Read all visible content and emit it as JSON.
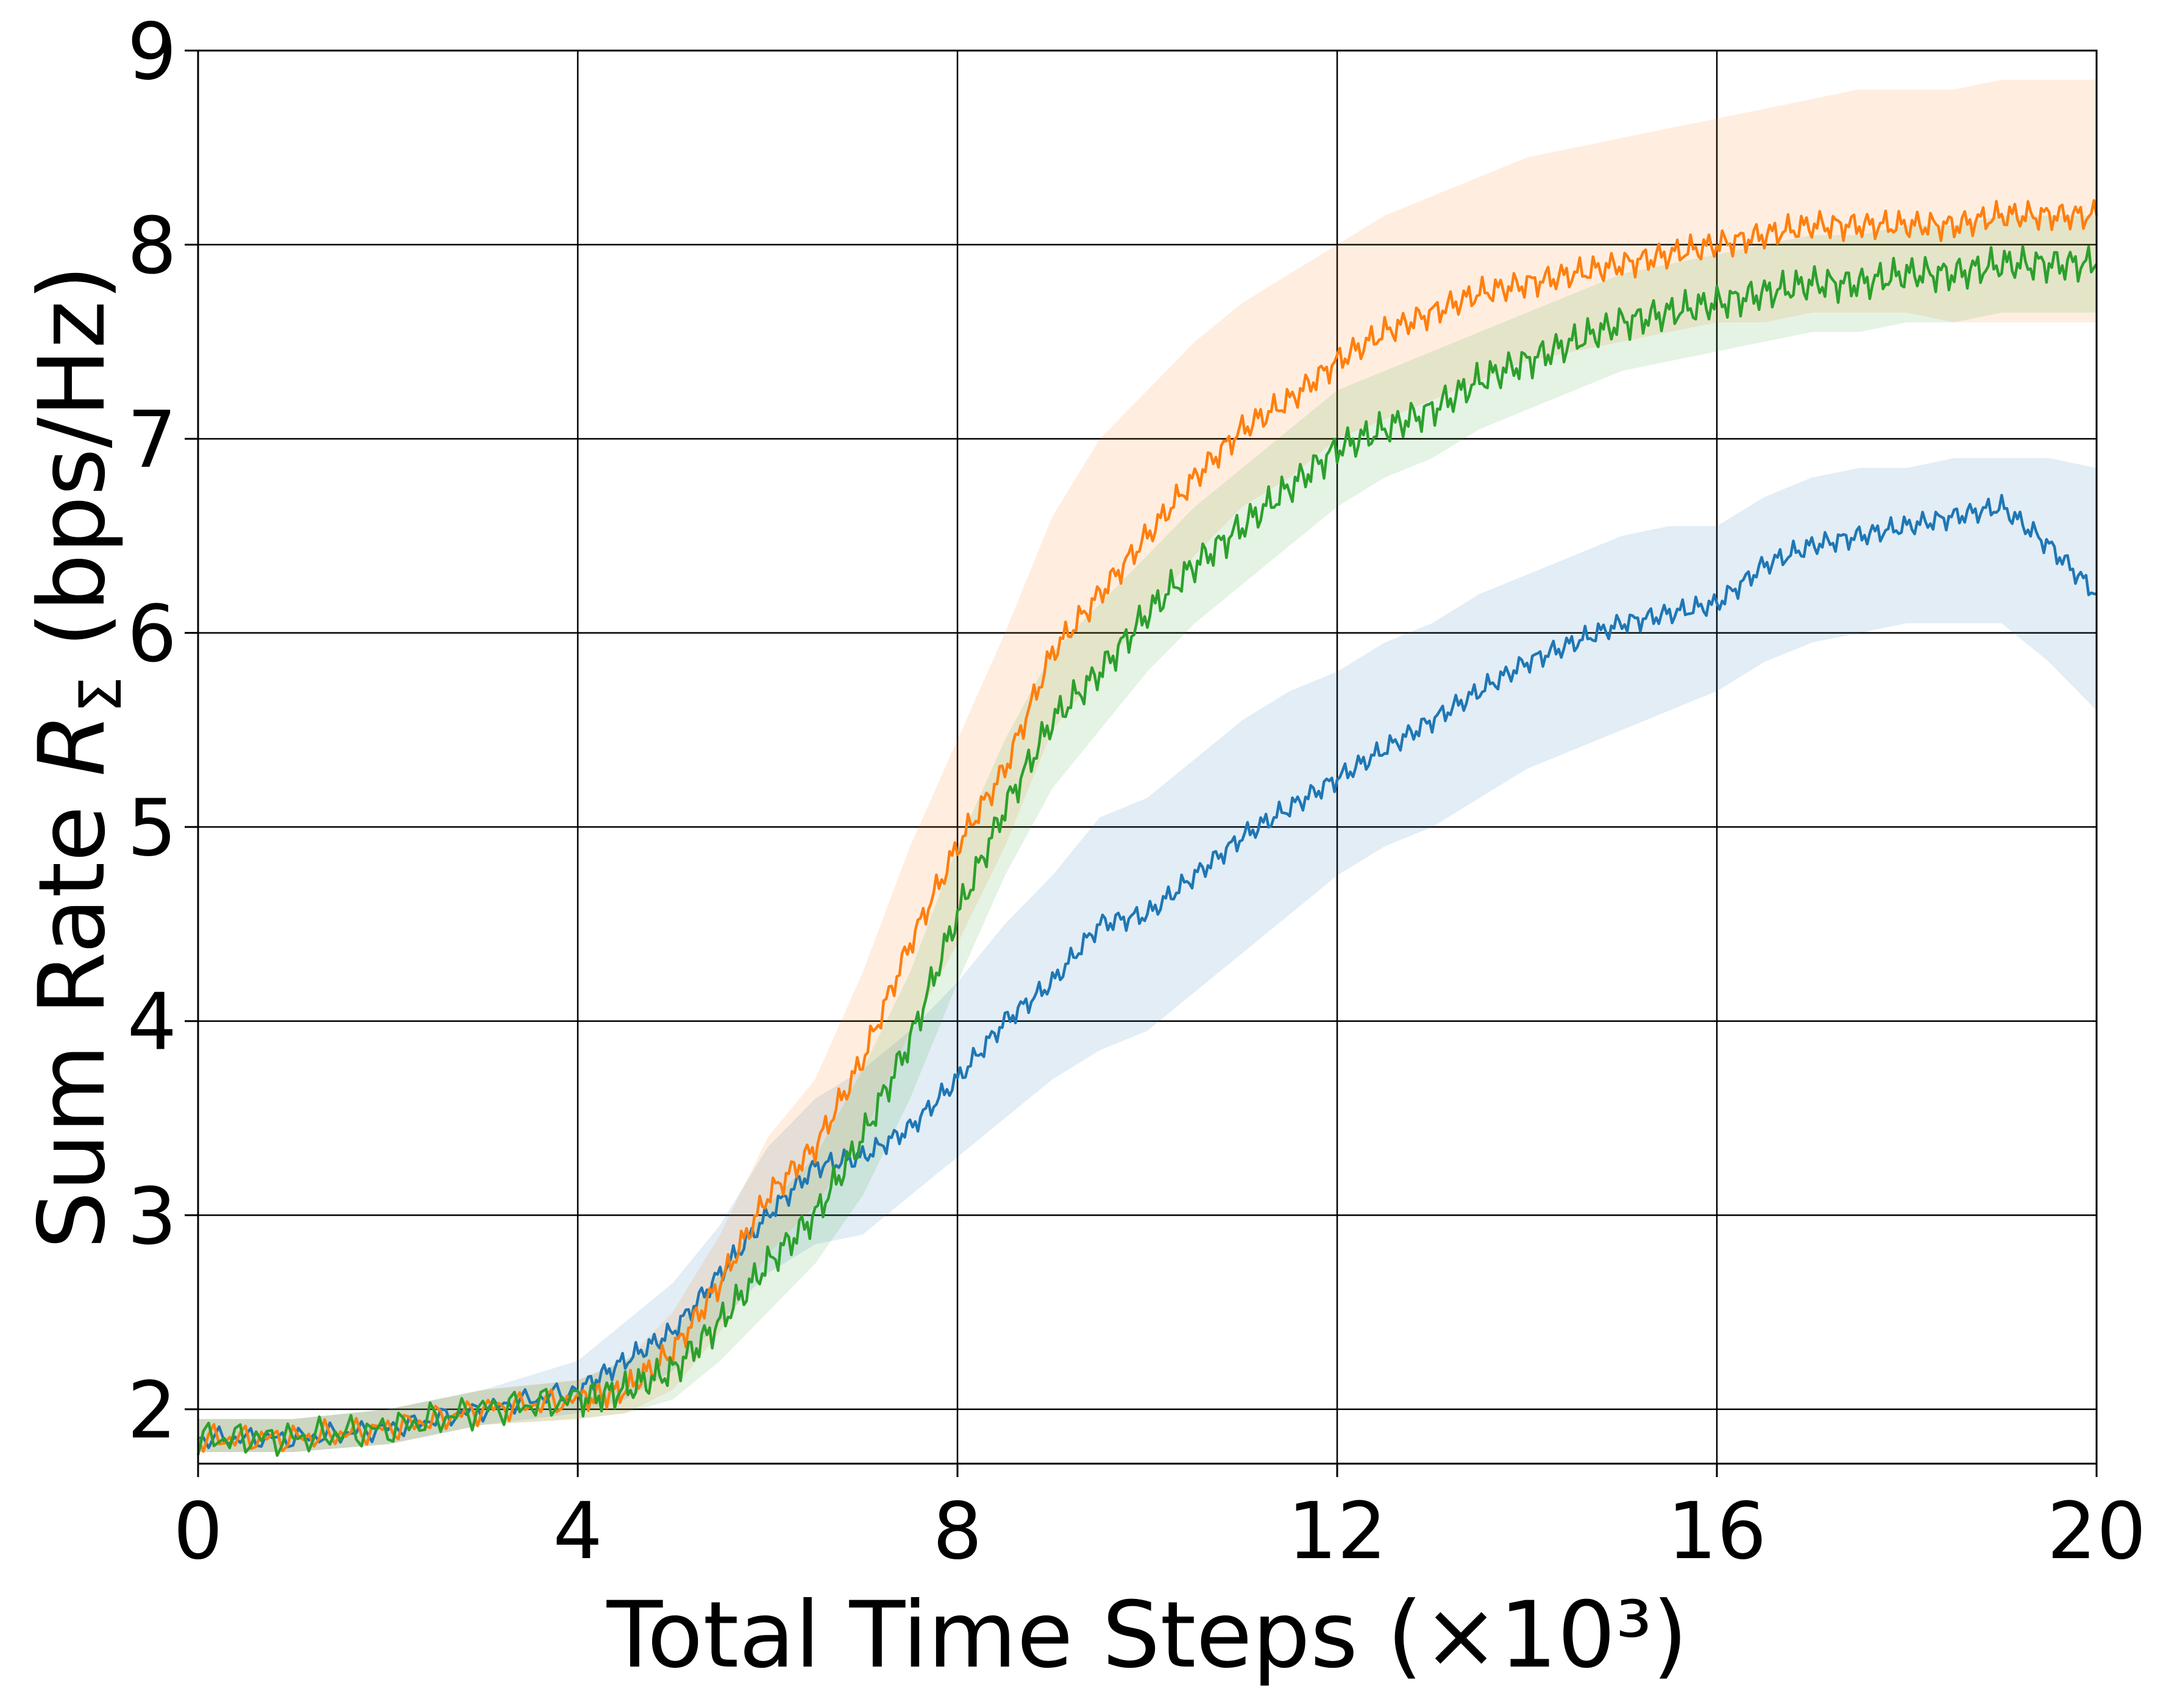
{
  "chart_data": {
    "type": "line",
    "xlabel": "Total Time Steps (×10³)",
    "ylabel_parts": {
      "prefix": "Sum Rate ",
      "symbol": "R",
      "subscript": "Σ",
      "suffix": " (bps/Hz)"
    },
    "xlim": [
      0,
      20
    ],
    "ylim": [
      1.72,
      9
    ],
    "xticks": [
      0,
      4,
      8,
      12,
      16,
      20
    ],
    "yticks": [
      2,
      3,
      4,
      5,
      6,
      7,
      8,
      9
    ],
    "grid": true,
    "legend": "none",
    "series": [
      {
        "color": "#1f77b4",
        "band_color": "#1f77b4",
        "x": [
          0,
          1,
          2,
          3,
          4,
          4.5,
          5,
          5.5,
          6,
          6.5,
          7,
          7.5,
          8,
          8.5,
          9,
          9.5,
          10,
          10.5,
          11,
          11.5,
          12,
          12.5,
          13,
          13.5,
          14,
          14.5,
          15,
          15.5,
          16,
          16.5,
          17,
          17.5,
          18,
          18.5,
          19,
          19.5,
          20
        ],
        "y": [
          1.85,
          1.85,
          1.9,
          2.0,
          2.1,
          2.25,
          2.4,
          2.7,
          3.0,
          3.25,
          3.3,
          3.45,
          3.7,
          4.0,
          4.2,
          4.5,
          4.55,
          4.75,
          4.95,
          5.1,
          5.25,
          5.4,
          5.55,
          5.7,
          5.85,
          5.95,
          6.05,
          6.1,
          6.15,
          6.35,
          6.45,
          6.5,
          6.55,
          6.6,
          6.65,
          6.45,
          6.2
        ],
        "low": [
          1.78,
          1.78,
          1.82,
          1.92,
          1.98,
          2.05,
          2.2,
          2.45,
          2.7,
          2.85,
          2.9,
          3.1,
          3.3,
          3.5,
          3.7,
          3.85,
          3.95,
          4.15,
          4.35,
          4.55,
          4.75,
          4.9,
          5.0,
          5.15,
          5.3,
          5.4,
          5.5,
          5.6,
          5.7,
          5.85,
          5.95,
          6.0,
          6.05,
          6.05,
          6.05,
          5.85,
          5.6
        ],
        "high": [
          1.95,
          1.95,
          2.0,
          2.1,
          2.25,
          2.45,
          2.65,
          2.95,
          3.35,
          3.6,
          3.75,
          3.95,
          4.2,
          4.5,
          4.75,
          5.05,
          5.15,
          5.35,
          5.55,
          5.7,
          5.8,
          5.95,
          6.05,
          6.2,
          6.3,
          6.4,
          6.5,
          6.55,
          6.55,
          6.7,
          6.8,
          6.85,
          6.85,
          6.9,
          6.9,
          6.9,
          6.85
        ]
      },
      {
        "color": "#ff7f0e",
        "band_color": "#ff7f0e",
        "x": [
          0,
          1,
          2,
          3,
          4,
          4.5,
          5,
          5.5,
          6,
          6.5,
          7,
          7.5,
          8,
          8.5,
          9,
          9.5,
          10,
          10.5,
          11,
          11.5,
          12,
          12.5,
          13,
          13.5,
          14,
          14.5,
          15,
          15.5,
          16,
          16.5,
          17,
          17.5,
          18,
          18.5,
          19,
          19.5,
          20
        ],
        "y": [
          1.85,
          1.85,
          1.9,
          2.0,
          2.05,
          2.1,
          2.3,
          2.65,
          3.1,
          3.35,
          3.8,
          4.4,
          4.9,
          5.3,
          5.9,
          6.2,
          6.5,
          6.8,
          7.05,
          7.2,
          7.4,
          7.55,
          7.65,
          7.75,
          7.8,
          7.85,
          7.9,
          7.95,
          8.0,
          8.05,
          8.1,
          8.1,
          8.1,
          8.1,
          8.15,
          8.15,
          8.15
        ],
        "low": [
          1.78,
          1.78,
          1.82,
          1.92,
          1.95,
          1.98,
          2.1,
          2.4,
          2.8,
          3.05,
          3.4,
          3.95,
          4.4,
          4.9,
          5.5,
          5.8,
          6.1,
          6.4,
          6.65,
          6.8,
          7.0,
          7.1,
          7.2,
          7.3,
          7.4,
          7.45,
          7.5,
          7.55,
          7.6,
          7.6,
          7.65,
          7.65,
          7.65,
          7.6,
          7.6,
          7.6,
          7.6
        ],
        "high": [
          1.95,
          1.95,
          2.0,
          2.1,
          2.15,
          2.25,
          2.5,
          2.9,
          3.4,
          3.7,
          4.25,
          4.9,
          5.45,
          6.0,
          6.6,
          7.0,
          7.25,
          7.5,
          7.7,
          7.85,
          8.0,
          8.15,
          8.25,
          8.35,
          8.45,
          8.5,
          8.55,
          8.6,
          8.65,
          8.7,
          8.75,
          8.8,
          8.8,
          8.8,
          8.85,
          8.85,
          8.85
        ]
      },
      {
        "color": "#2ca02c",
        "band_color": "#2ca02c",
        "x": [
          0,
          1,
          2,
          3,
          4,
          4.5,
          5,
          5.5,
          6,
          6.5,
          7,
          7.5,
          8,
          8.5,
          9,
          9.5,
          10,
          10.5,
          11,
          11.5,
          12,
          12.5,
          13,
          13.5,
          14,
          14.5,
          15,
          15.5,
          16,
          16.5,
          17,
          17.5,
          18,
          18.5,
          19,
          19.5,
          20
        ],
        "y": [
          1.85,
          1.85,
          1.9,
          2.0,
          2.05,
          2.1,
          2.2,
          2.45,
          2.75,
          3.0,
          3.4,
          3.9,
          4.55,
          5.1,
          5.55,
          5.8,
          6.1,
          6.35,
          6.55,
          6.75,
          6.95,
          7.05,
          7.15,
          7.3,
          7.4,
          7.5,
          7.6,
          7.65,
          7.7,
          7.75,
          7.8,
          7.8,
          7.85,
          7.85,
          7.9,
          7.9,
          7.9
        ],
        "low": [
          1.78,
          1.78,
          1.82,
          1.92,
          1.95,
          1.98,
          2.05,
          2.25,
          2.5,
          2.75,
          3.1,
          3.6,
          4.2,
          4.75,
          5.2,
          5.5,
          5.8,
          6.05,
          6.25,
          6.45,
          6.65,
          6.8,
          6.9,
          7.05,
          7.15,
          7.25,
          7.35,
          7.4,
          7.45,
          7.5,
          7.55,
          7.55,
          7.6,
          7.6,
          7.65,
          7.65,
          7.65
        ],
        "high": [
          1.95,
          1.95,
          2.0,
          2.1,
          2.15,
          2.25,
          2.4,
          2.7,
          3.05,
          3.3,
          3.75,
          4.25,
          4.9,
          5.45,
          5.9,
          6.15,
          6.4,
          6.65,
          6.85,
          7.05,
          7.25,
          7.35,
          7.45,
          7.55,
          7.65,
          7.75,
          7.85,
          7.9,
          7.95,
          8.0,
          8.05,
          8.05,
          8.1,
          8.1,
          8.15,
          8.15,
          8.15
        ]
      }
    ]
  }
}
